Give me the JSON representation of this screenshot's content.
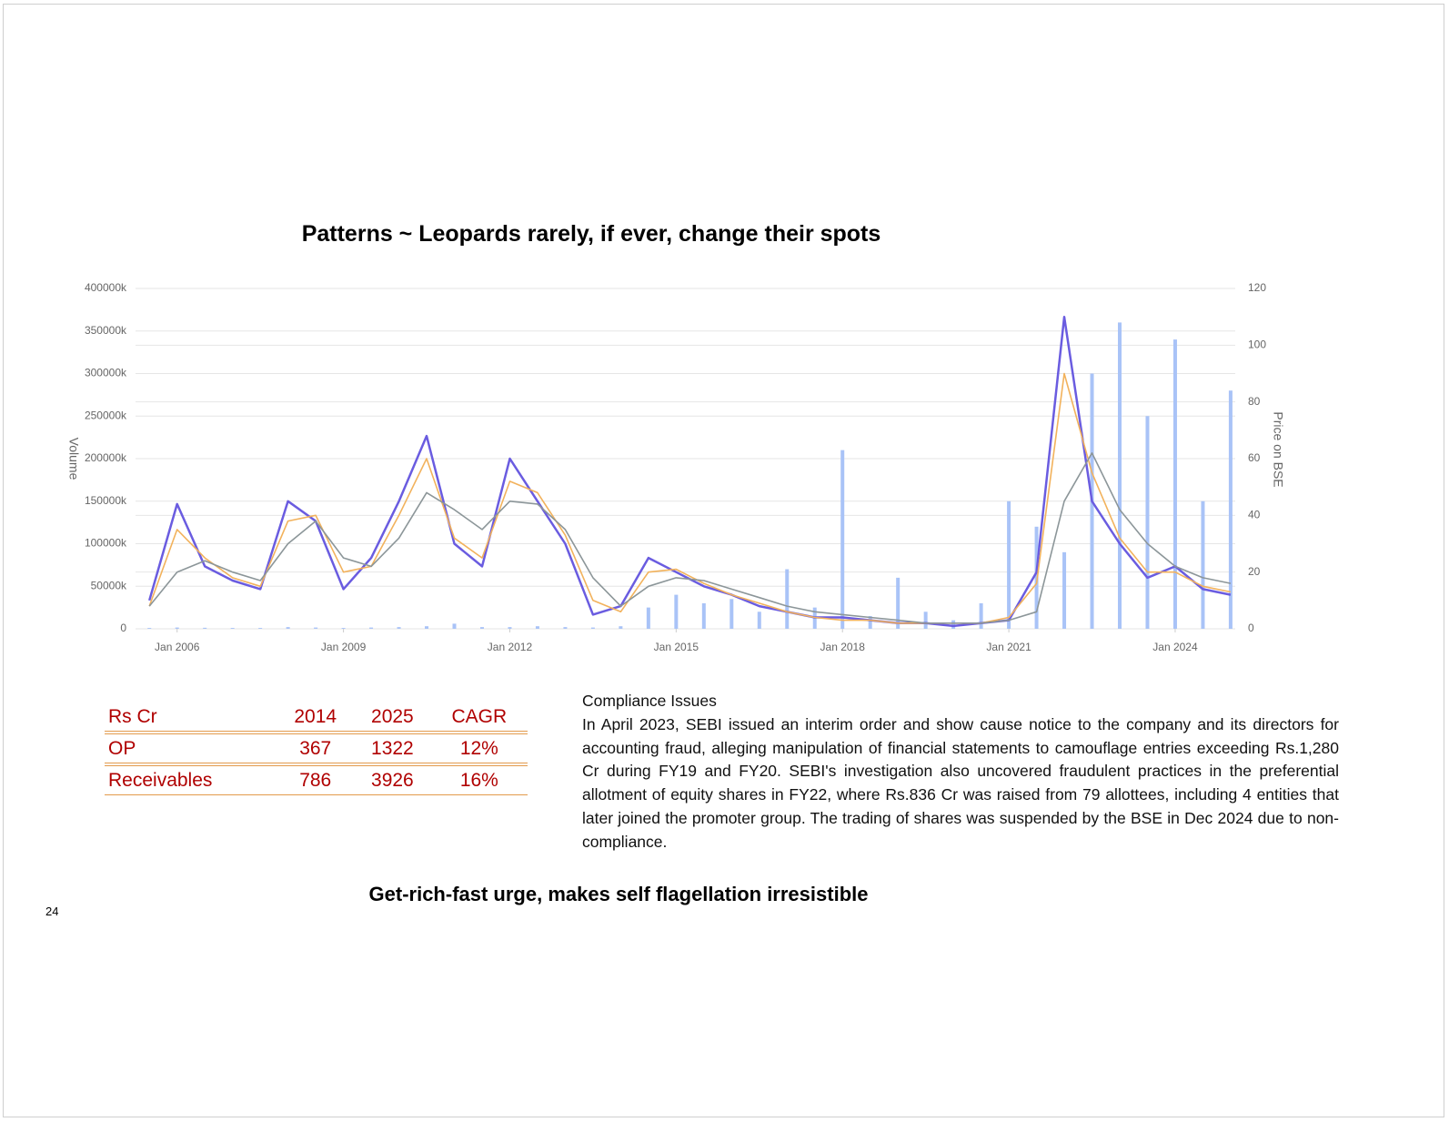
{
  "title": "Patterns ~ Leopards rarely, if ever, change their spots",
  "chart_data": {
    "type": "line",
    "y_label": "Volume",
    "y2_label": "Price on BSE",
    "x": [
      "2005-07",
      "2006-01",
      "2006-07",
      "2007-01",
      "2007-07",
      "2008-01",
      "2008-07",
      "2009-01",
      "2009-07",
      "2010-01",
      "2010-07",
      "2011-01",
      "2011-07",
      "2012-01",
      "2012-07",
      "2013-01",
      "2013-07",
      "2014-01",
      "2014-07",
      "2015-01",
      "2015-07",
      "2016-01",
      "2016-07",
      "2017-01",
      "2017-07",
      "2018-01",
      "2018-07",
      "2019-01",
      "2019-07",
      "2020-01",
      "2020-07",
      "2021-01",
      "2021-07",
      "2022-01",
      "2022-07",
      "2023-01",
      "2023-07",
      "2024-01",
      "2024-07",
      "2025-01"
    ],
    "xlim": [
      "2005-04",
      "2025-02"
    ],
    "xticks": [
      {
        "value": "2006-01",
        "label": "Jan 2006"
      },
      {
        "value": "2009-01",
        "label": "Jan 2009"
      },
      {
        "value": "2012-01",
        "label": "Jan 2012"
      },
      {
        "value": "2015-01",
        "label": "Jan 2015"
      },
      {
        "value": "2018-01",
        "label": "Jan 2018"
      },
      {
        "value": "2021-01",
        "label": "Jan 2021"
      },
      {
        "value": "2024-01",
        "label": "Jan 2024"
      }
    ],
    "ylim": [
      0,
      400000
    ],
    "yticks": [
      0,
      {
        "value": 50000,
        "label": "50000k"
      },
      {
        "value": 100000,
        "label": "100000k"
      },
      {
        "value": 150000,
        "label": "150000k"
      },
      {
        "value": 200000,
        "label": "200000k"
      },
      {
        "value": 250000,
        "label": "250000k"
      },
      {
        "value": 300000,
        "label": "300000k"
      },
      {
        "value": 350000,
        "label": "350000k"
      },
      {
        "value": 400000,
        "label": "400000k"
      }
    ],
    "y2lim": [
      0,
      120
    ],
    "y2ticks": [
      0,
      20,
      40,
      60,
      80,
      100,
      120
    ],
    "grid": true,
    "series": [
      {
        "type": "bar",
        "color": "#a9c3f7",
        "values": [
          1000,
          1500,
          1200,
          1000,
          1000,
          2000,
          1500,
          1000,
          1500,
          2000,
          3000,
          6000,
          2000,
          2000,
          3000,
          2000,
          1500,
          3000,
          25000,
          40000,
          30000,
          35000,
          20000,
          70000,
          25000,
          210000,
          15000,
          60000,
          20000,
          10000,
          30000,
          150000,
          120000,
          90000,
          300000,
          360000,
          250000,
          340000,
          150000,
          280000
        ]
      },
      {
        "type": "line",
        "axis": "y2",
        "color": "#6a5ce0",
        "values": [
          10,
          44,
          22,
          17,
          14,
          45,
          38,
          14,
          25,
          45,
          68,
          30,
          22,
          60,
          45,
          30,
          5,
          8,
          25,
          20,
          15,
          12,
          8,
          6,
          4,
          4,
          3,
          2,
          2,
          1,
          2,
          3,
          20,
          110,
          45,
          30,
          18,
          22,
          14,
          12
        ]
      },
      {
        "type": "line",
        "axis": "y2",
        "color": "#f2b25c",
        "values": [
          8,
          35,
          25,
          18,
          15,
          38,
          40,
          20,
          22,
          40,
          60,
          32,
          25,
          52,
          48,
          33,
          10,
          6,
          20,
          21,
          16,
          12,
          9,
          6,
          4,
          3,
          3,
          2,
          2,
          2,
          2,
          4,
          16,
          90,
          55,
          32,
          20,
          20,
          15,
          13
        ]
      },
      {
        "type": "line",
        "axis": "y2",
        "color": "#8c9699",
        "values": [
          8,
          20,
          24,
          20,
          17,
          30,
          38,
          25,
          22,
          32,
          48,
          42,
          35,
          45,
          44,
          35,
          18,
          8,
          15,
          18,
          17,
          14,
          11,
          8,
          6,
          5,
          4,
          3,
          2,
          2,
          2,
          3,
          6,
          45,
          62,
          42,
          30,
          22,
          18,
          16
        ]
      }
    ]
  },
  "table": {
    "header": [
      "Rs Cr",
      "2014",
      "2025",
      "CAGR"
    ],
    "rows": [
      [
        "OP",
        "367",
        "1322",
        "12%"
      ],
      [
        "Receivables",
        "786",
        "3926",
        "16%"
      ]
    ]
  },
  "compliance": {
    "heading": "Compliance Issues",
    "text": "In April 2023, SEBI issued an interim order and show cause notice to the company and its directors for accounting fraud, alleging manipulation of financial statements to camouflage entries exceeding Rs.1,280 Cr during FY19 and FY20. SEBI's investigation also uncovered fraudulent practices in the preferential allotment of equity shares in FY22, where Rs.836 Cr was raised from 79 allottees, including 4 entities that later joined the promoter group. The trading of shares was suspended by the BSE in Dec 2024 due to non-compliance."
  },
  "footer": "Get-rich-fast urge, makes self flagellation irresistible",
  "page_number": "24"
}
